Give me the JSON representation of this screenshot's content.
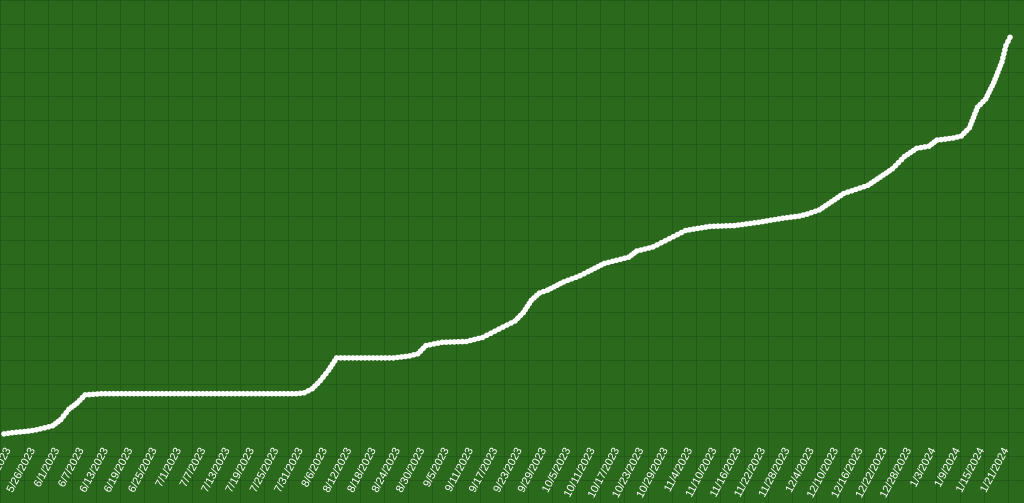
{
  "chart_data": {
    "type": "line",
    "title": "",
    "xlabel": "",
    "ylabel": "",
    "grid": true,
    "legend": "none",
    "colors": {
      "background": "#2b6a1d",
      "grid": "#245a17",
      "series": "#ffffff",
      "text": "#ffffff"
    },
    "x_tick_labels": [
      "5/20/2023",
      "5/26/2023",
      "6/1/2023",
      "6/7/2023",
      "6/13/2023",
      "6/19/2023",
      "6/25/2023",
      "7/1/2023",
      "7/7/2023",
      "7/13/2023",
      "7/19/2023",
      "7/25/2023",
      "7/31/2023",
      "8/6/2023",
      "8/12/2023",
      "8/18/2023",
      "8/24/2023",
      "8/30/2023",
      "9/5/2023",
      "9/11/2023",
      "9/17/2023",
      "9/23/2023",
      "9/29/2023",
      "10/5/2023",
      "10/11/2023",
      "10/17/2023",
      "10/23/2023",
      "10/29/2023",
      "11/4/2023",
      "11/10/2023",
      "11/16/2023",
      "11/22/2023",
      "11/28/2023",
      "12/4/2023",
      "12/10/2023",
      "12/16/2023",
      "12/22/2023",
      "12/28/2023",
      "1/3/2024",
      "1/9/2024",
      "1/15/2024",
      "1/21/2024"
    ],
    "ylim": [
      0,
      100
    ],
    "series": [
      {
        "x": [
          "5/20/2023",
          "5/22/2023",
          "5/24/2023",
          "5/26/2023",
          "5/28/2023",
          "5/30/2023",
          "6/1/2023",
          "6/3/2023",
          "6/5/2023",
          "6/7/2023",
          "6/9/2023",
          "6/13/2023",
          "6/19/2023",
          "6/25/2023",
          "7/1/2023",
          "7/7/2023",
          "7/13/2023",
          "7/19/2023",
          "7/25/2023",
          "7/31/2023",
          "8/2/2023",
          "8/4/2023",
          "8/6/2023",
          "8/8/2023",
          "8/10/2023",
          "8/12/2023",
          "8/18/2023",
          "8/24/2023",
          "8/28/2023",
          "8/30/2023",
          "9/1/2023",
          "9/5/2023",
          "9/11/2023",
          "9/15/2023",
          "9/17/2023",
          "9/19/2023",
          "9/21/2023",
          "9/23/2023",
          "9/25/2023",
          "9/27/2023",
          "9/29/2023",
          "10/1/2023",
          "10/5/2023",
          "10/9/2023",
          "10/11/2023",
          "10/15/2023",
          "10/17/2023",
          "10/21/2023",
          "10/23/2023",
          "10/27/2023",
          "10/29/2023",
          "11/1/2023",
          "11/4/2023",
          "11/7/2023",
          "11/10/2023",
          "11/16/2023",
          "11/22/2023",
          "11/28/2023",
          "12/2/2023",
          "12/4/2023",
          "12/7/2023",
          "12/10/2023",
          "12/13/2023",
          "12/16/2023",
          "12/19/2023",
          "12/22/2023",
          "12/25/2023",
          "12/28/2023",
          "12/31/2023",
          "1/3/2024",
          "1/5/2024",
          "1/9/2024",
          "1/11/2024",
          "1/13/2024",
          "1/15/2024",
          "1/17/2024",
          "1/19/2024",
          "1/21/2024",
          "1/22/2024",
          "1/23/2024"
        ],
        "y": [
          0.5,
          0.8,
          1,
          1.2,
          1.5,
          2,
          2.5,
          4,
          6.5,
          8,
          10,
          10.3,
          10.3,
          10.3,
          10.3,
          10.3,
          10.3,
          10.3,
          10.3,
          10.3,
          10.5,
          11.5,
          13.5,
          16,
          19,
          19,
          19,
          19,
          19.5,
          20,
          22,
          22.8,
          23,
          24,
          25,
          26,
          27,
          28,
          30,
          33,
          34.8,
          35.5,
          37.5,
          39,
          40,
          42,
          42.5,
          43.5,
          45,
          46,
          47,
          48.5,
          50,
          50.5,
          51,
          51.2,
          52,
          53,
          53.5,
          54,
          55,
          57,
          59,
          60,
          61,
          63,
          65,
          68,
          70,
          70.5,
          72,
          72.5,
          73,
          75,
          80,
          82,
          86,
          91,
          95,
          97
        ]
      }
    ]
  }
}
